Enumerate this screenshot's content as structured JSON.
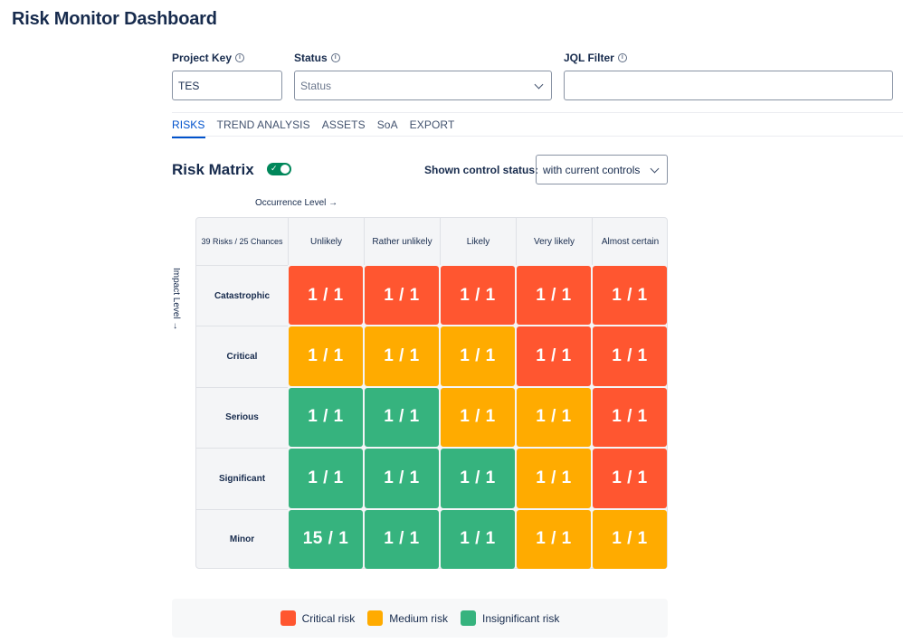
{
  "page": {
    "title": "Risk Monitor Dashboard"
  },
  "filters": {
    "project_key": {
      "label": "Project Key",
      "value": "TES",
      "info_icon": "ⓘ"
    },
    "status": {
      "label": "Status",
      "placeholder": "Status",
      "info_icon": "ⓘ"
    },
    "jql": {
      "label": "JQL Filter",
      "value": "",
      "info_icon": "ⓘ"
    }
  },
  "tabs": [
    {
      "label": "RISKS",
      "active": true
    },
    {
      "label": "TREND ANALYSIS",
      "active": false
    },
    {
      "label": "ASSETS",
      "active": false
    },
    {
      "label": "SoA",
      "active": false
    },
    {
      "label": "EXPORT",
      "active": false
    }
  ],
  "matrix": {
    "title": "Risk Matrix",
    "toggle_on": true,
    "control_status_label": "Shown control status:",
    "control_status_value": "with current controls",
    "occurrence_label": "Occurrence Level →",
    "impact_label": "Impact Level →",
    "corner_label": "39 Risks / 25 Chances",
    "columns": [
      "Unlikely",
      "Rather unlikely",
      "Likely",
      "Very likely",
      "Almost certain"
    ],
    "rows": [
      {
        "label": "Catastrophic",
        "cells": [
          {
            "value": "1 / 1",
            "level": "critical"
          },
          {
            "value": "1 / 1",
            "level": "critical"
          },
          {
            "value": "1 / 1",
            "level": "critical"
          },
          {
            "value": "1 / 1",
            "level": "critical"
          },
          {
            "value": "1 / 1",
            "level": "critical"
          }
        ]
      },
      {
        "label": "Critical",
        "cells": [
          {
            "value": "1 / 1",
            "level": "medium"
          },
          {
            "value": "1 / 1",
            "level": "medium"
          },
          {
            "value": "1 / 1",
            "level": "medium"
          },
          {
            "value": "1 / 1",
            "level": "critical"
          },
          {
            "value": "1 / 1",
            "level": "critical"
          }
        ]
      },
      {
        "label": "Serious",
        "cells": [
          {
            "value": "1 / 1",
            "level": "insignificant"
          },
          {
            "value": "1 / 1",
            "level": "insignificant"
          },
          {
            "value": "1 / 1",
            "level": "medium"
          },
          {
            "value": "1 / 1",
            "level": "medium"
          },
          {
            "value": "1 / 1",
            "level": "critical"
          }
        ]
      },
      {
        "label": "Significant",
        "cells": [
          {
            "value": "1 / 1",
            "level": "insignificant"
          },
          {
            "value": "1 / 1",
            "level": "insignificant"
          },
          {
            "value": "1 / 1",
            "level": "insignificant"
          },
          {
            "value": "1 / 1",
            "level": "medium"
          },
          {
            "value": "1 / 1",
            "level": "critical"
          }
        ]
      },
      {
        "label": "Minor",
        "cells": [
          {
            "value": "15 / 1",
            "level": "insignificant"
          },
          {
            "value": "1 / 1",
            "level": "insignificant"
          },
          {
            "value": "1 / 1",
            "level": "insignificant"
          },
          {
            "value": "1 / 1",
            "level": "medium"
          },
          {
            "value": "1 / 1",
            "level": "medium"
          }
        ]
      }
    ]
  },
  "legend": [
    {
      "label": "Critical risk",
      "color": "#ff5630"
    },
    {
      "label": "Medium risk",
      "color": "#ffab00"
    },
    {
      "label": "Insignificant risk",
      "color": "#36b37e"
    }
  ],
  "colors": {
    "critical": "#ff5630",
    "medium": "#ffab00",
    "insignificant": "#36b37e",
    "accent": "#0052cc",
    "toggle": "#00875a"
  }
}
